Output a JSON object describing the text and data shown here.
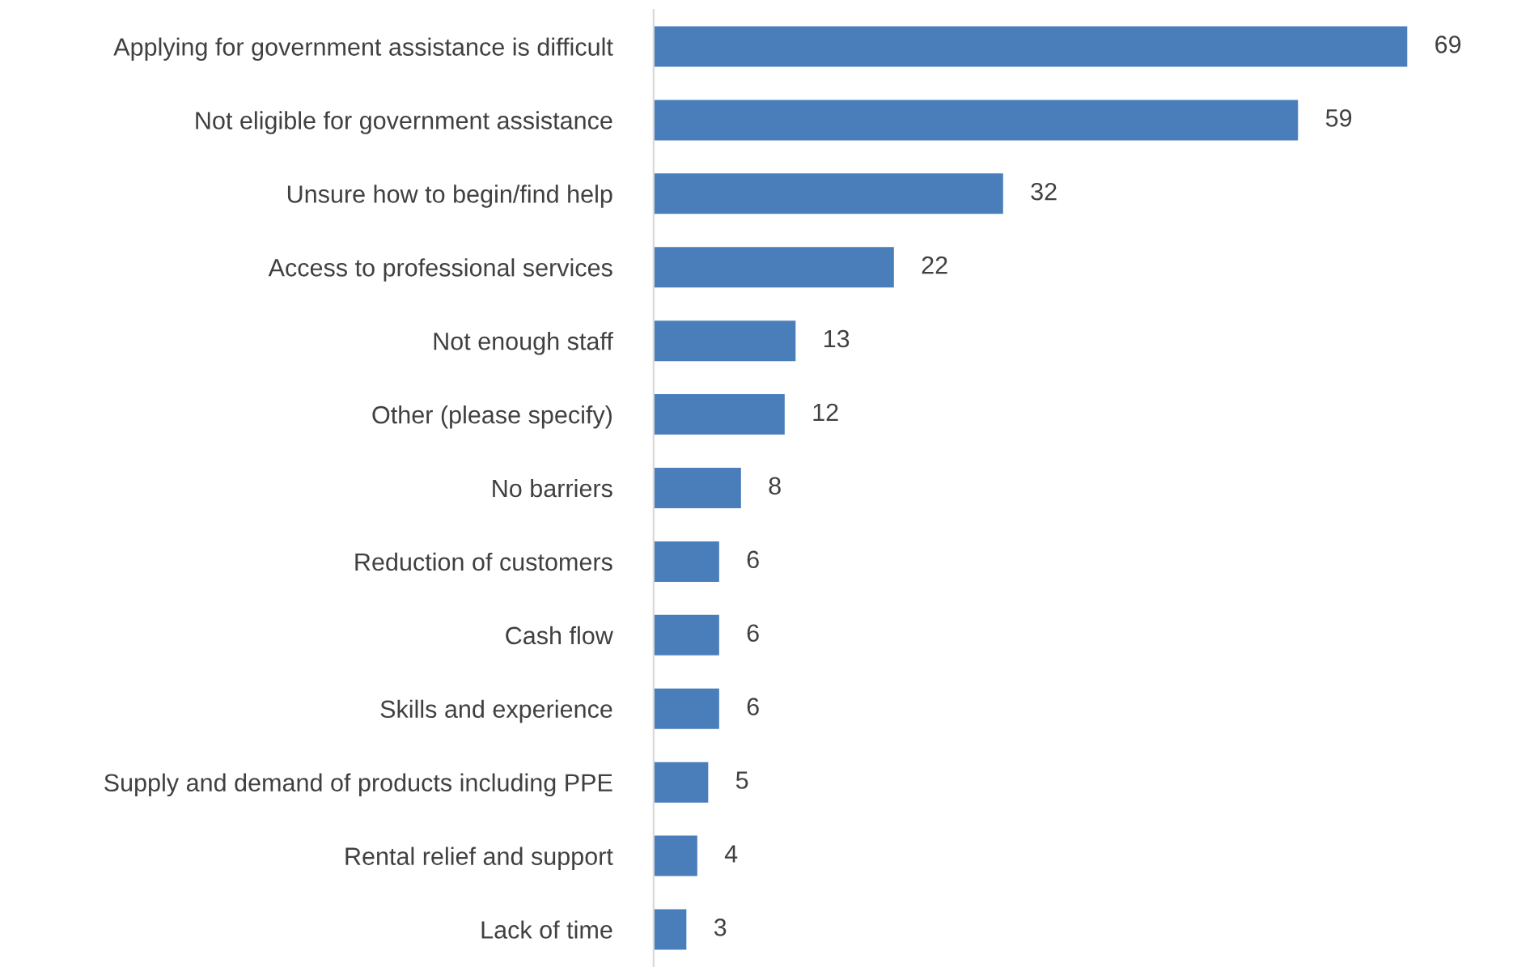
{
  "chart_data": {
    "type": "bar",
    "orientation": "horizontal",
    "data_labels": true,
    "grid": false,
    "legend": false,
    "categories": [
      "Applying for government assistance is difficult",
      "Not eligible for government assistance",
      "Unsure how to begin/find help",
      "Access to professional services",
      "Not enough staff",
      "Other (please specify)",
      "No barriers",
      "Reduction of customers",
      "Cash flow",
      "Skills and experience",
      "Supply and demand of products including PPE",
      "Rental relief and support",
      "Lack of time"
    ],
    "values": [
      69,
      59,
      32,
      22,
      13,
      12,
      8,
      6,
      6,
      6,
      5,
      4,
      3
    ],
    "color": "#4a7ebb"
  }
}
